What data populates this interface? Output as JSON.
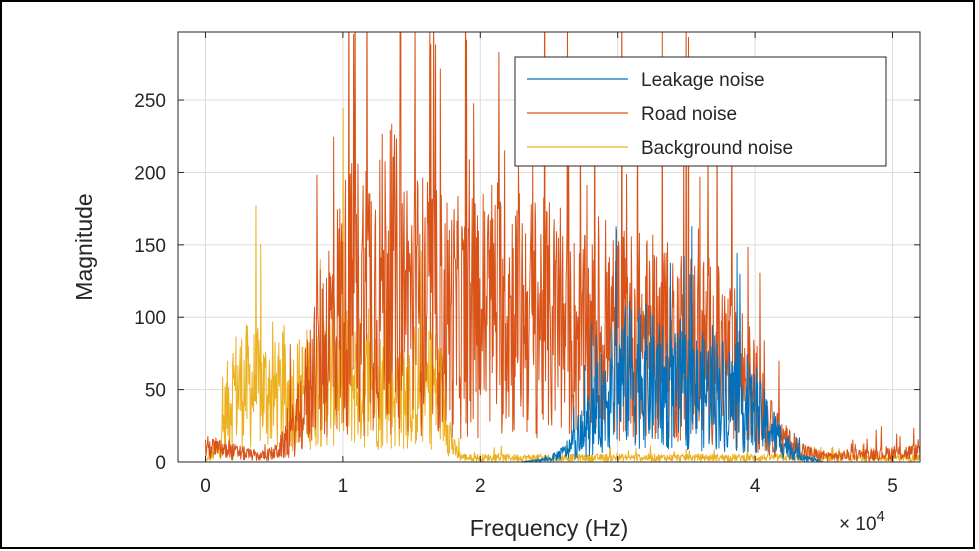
{
  "chart_data": {
    "type": "line",
    "title": "",
    "xlabel": "Frequency (Hz)",
    "ylabel": "Magnitude",
    "x_exponent_label": "× 10",
    "x_exponent_power": "4",
    "xlim": [
      -0.2,
      5.2
    ],
    "ylim": [
      0,
      297
    ],
    "x_tick_values": [
      0,
      1,
      2,
      3,
      4,
      5
    ],
    "x_tick_labels": [
      "0",
      "1",
      "2",
      "3",
      "4",
      "5"
    ],
    "y_tick_values": [
      0,
      50,
      100,
      150,
      200,
      250
    ],
    "y_tick_labels": [
      "0",
      "50",
      "100",
      "150",
      "200",
      "250"
    ],
    "grid": true,
    "legend_position": "top-right",
    "series": [
      {
        "name": "Leakage noise",
        "color": "#0072BD",
        "envelope": [
          [
            0,
            0
          ],
          [
            2.3,
            0
          ],
          [
            2.5,
            2
          ],
          [
            2.6,
            6
          ],
          [
            2.7,
            14
          ],
          [
            2.8,
            28
          ],
          [
            2.9,
            44
          ],
          [
            3.0,
            55
          ],
          [
            3.1,
            62
          ],
          [
            3.2,
            60
          ],
          [
            3.3,
            52
          ],
          [
            3.4,
            48
          ],
          [
            3.5,
            50
          ],
          [
            3.6,
            48
          ],
          [
            3.7,
            50
          ],
          [
            3.8,
            46
          ],
          [
            3.9,
            40
          ],
          [
            4.0,
            34
          ],
          [
            4.1,
            24
          ],
          [
            4.2,
            14
          ],
          [
            4.3,
            6
          ],
          [
            4.4,
            2
          ],
          [
            4.5,
            0
          ],
          [
            5.2,
            0
          ]
        ]
      },
      {
        "name": "Road noise",
        "color": "#D95319",
        "envelope": [
          [
            0,
            10
          ],
          [
            0.2,
            7
          ],
          [
            0.4,
            4
          ],
          [
            0.5,
            6
          ],
          [
            0.6,
            15
          ],
          [
            0.7,
            35
          ],
          [
            0.8,
            68
          ],
          [
            0.9,
            90
          ],
          [
            1.0,
            108
          ],
          [
            1.1,
            118
          ],
          [
            1.2,
            122
          ],
          [
            1.3,
            126
          ],
          [
            1.4,
            122
          ],
          [
            1.5,
            112
          ],
          [
            1.6,
            108
          ],
          [
            1.7,
            104
          ],
          [
            1.8,
            100
          ],
          [
            1.9,
            98
          ],
          [
            2.0,
            104
          ],
          [
            2.1,
            110
          ],
          [
            2.2,
            106
          ],
          [
            2.3,
            102
          ],
          [
            2.4,
            100
          ],
          [
            2.5,
            98
          ],
          [
            2.6,
            92
          ],
          [
            2.7,
            86
          ],
          [
            2.8,
            84
          ],
          [
            2.9,
            86
          ],
          [
            3.0,
            90
          ],
          [
            3.1,
            88
          ],
          [
            3.2,
            86
          ],
          [
            3.3,
            84
          ],
          [
            3.4,
            82
          ],
          [
            3.5,
            82
          ],
          [
            3.6,
            80
          ],
          [
            3.7,
            76
          ],
          [
            3.8,
            70
          ],
          [
            3.9,
            62
          ],
          [
            4.0,
            46
          ],
          [
            4.1,
            25
          ],
          [
            4.2,
            15
          ],
          [
            4.3,
            10
          ],
          [
            4.4,
            6
          ],
          [
            4.5,
            4
          ],
          [
            4.6,
            4
          ],
          [
            4.7,
            5
          ],
          [
            4.8,
            5
          ],
          [
            4.9,
            6
          ],
          [
            5.0,
            6
          ],
          [
            5.2,
            7
          ]
        ]
      },
      {
        "name": "Background noise",
        "color": "#EDB120",
        "envelope": [
          [
            0,
            1
          ],
          [
            0.1,
            8
          ],
          [
            0.15,
            35
          ],
          [
            0.2,
            50
          ],
          [
            0.3,
            52
          ],
          [
            0.4,
            50
          ],
          [
            0.5,
            46
          ],
          [
            0.6,
            44
          ],
          [
            0.7,
            48
          ],
          [
            0.8,
            56
          ],
          [
            0.9,
            62
          ],
          [
            1.0,
            60
          ],
          [
            1.1,
            56
          ],
          [
            1.2,
            52
          ],
          [
            1.3,
            50
          ],
          [
            1.4,
            50
          ],
          [
            1.5,
            52
          ],
          [
            1.6,
            54
          ],
          [
            1.7,
            50
          ],
          [
            1.75,
            36
          ],
          [
            1.8,
            10
          ],
          [
            1.85,
            4
          ],
          [
            1.9,
            3
          ],
          [
            5.2,
            3
          ]
        ]
      }
    ]
  }
}
